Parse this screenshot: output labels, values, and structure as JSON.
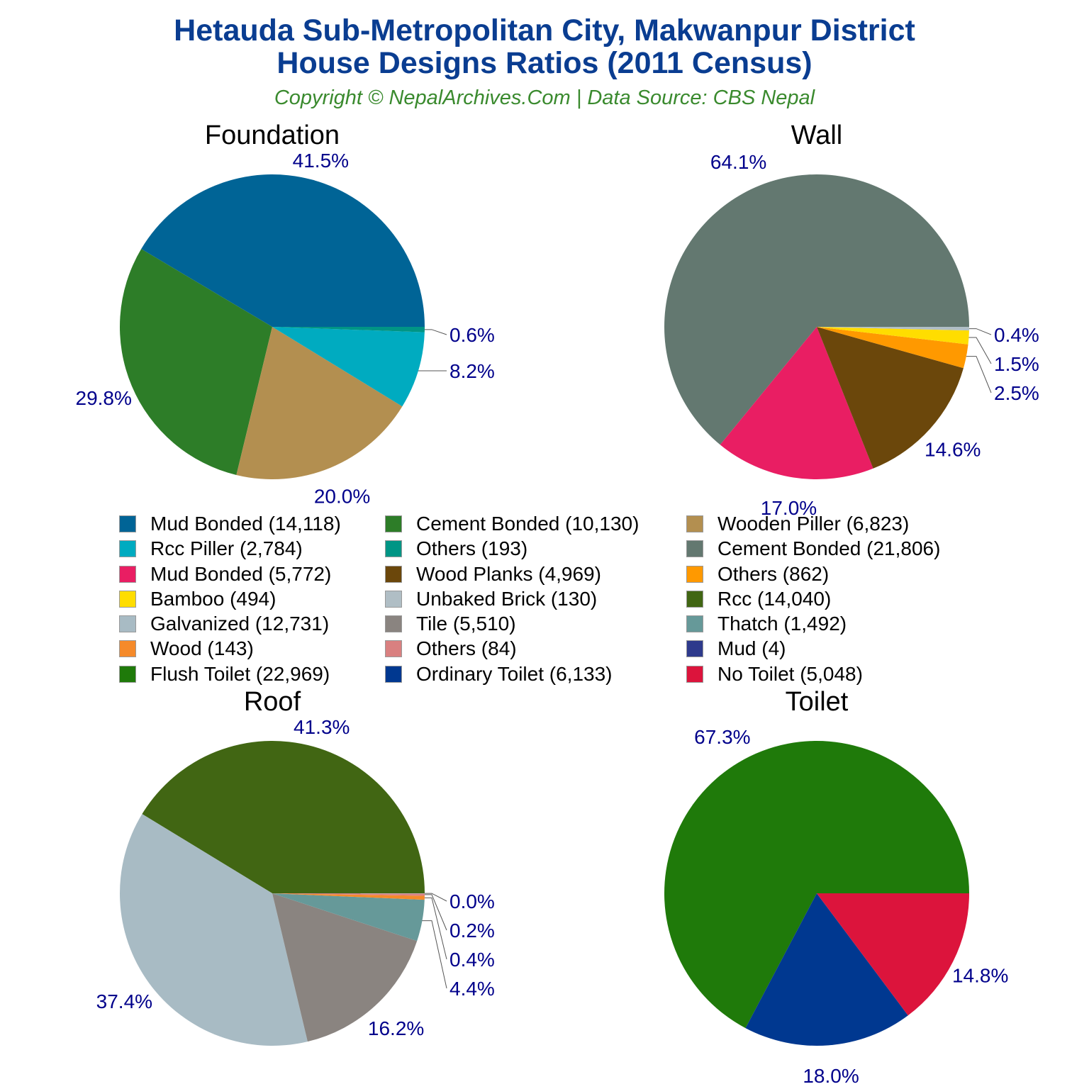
{
  "title_line1": "Hetauda Sub-Metropolitan City, Makwanpur District",
  "title_line2": "House Designs Ratios (2011 Census)",
  "copyright": "Copyright © NepalArchives.Com | Data Source: CBS Nepal",
  "chart_data": [
    {
      "type": "pie",
      "title": "Foundation",
      "slices": [
        {
          "label": "Mud Bonded",
          "value": 14118,
          "pct": "41.5%",
          "color": "#006496"
        },
        {
          "label": "Cement Bonded",
          "value": 10130,
          "pct": "29.8%",
          "color": "#2d7d28"
        },
        {
          "label": "Wooden Piller",
          "value": 6823,
          "pct": "20.0%",
          "color": "#b38f50"
        },
        {
          "label": "Rcc Piller",
          "value": 2784,
          "pct": "8.2%",
          "color": "#00abc0"
        },
        {
          "label": "Others",
          "value": 193,
          "pct": "0.6%",
          "color": "#009585"
        }
      ]
    },
    {
      "type": "pie",
      "title": "Wall",
      "slices": [
        {
          "label": "Cement Bonded",
          "value": 21806,
          "pct": "64.1%",
          "color": "#637870"
        },
        {
          "label": "Mud Bonded",
          "value": 5772,
          "pct": "17.0%",
          "color": "#e91e63"
        },
        {
          "label": "Wood Planks",
          "value": 4969,
          "pct": "14.6%",
          "color": "#6b470b"
        },
        {
          "label": "Others",
          "value": 862,
          "pct": "2.5%",
          "color": "#ff9900"
        },
        {
          "label": "Bamboo",
          "value": 494,
          "pct": "1.5%",
          "color": "#ffdd00"
        },
        {
          "label": "Unbaked Brick",
          "value": 130,
          "pct": "0.4%",
          "color": "#b0bec5"
        }
      ]
    },
    {
      "type": "pie",
      "title": "Roof",
      "slices": [
        {
          "label": "Rcc",
          "value": 14040,
          "pct": "41.3%",
          "color": "#416613"
        },
        {
          "label": "Galvanized",
          "value": 12731,
          "pct": "37.4%",
          "color": "#a8bbc4"
        },
        {
          "label": "Tile",
          "value": 5510,
          "pct": "16.2%",
          "color": "#8a8480"
        },
        {
          "label": "Thatch",
          "value": 1492,
          "pct": "4.4%",
          "color": "#669999"
        },
        {
          "label": "Wood",
          "value": 143,
          "pct": "0.4%",
          "color": "#f58a2a"
        },
        {
          "label": "Others",
          "value": 84,
          "pct": "0.2%",
          "color": "#d98080"
        },
        {
          "label": "Mud",
          "value": 4,
          "pct": "0.0%",
          "color": "#2e3a8c"
        }
      ]
    },
    {
      "type": "pie",
      "title": "Toilet",
      "slices": [
        {
          "label": "Flush Toilet",
          "value": 22969,
          "pct": "67.3%",
          "color": "#1f7a0a"
        },
        {
          "label": "Ordinary Toilet",
          "value": 6133,
          "pct": "18.0%",
          "color": "#003890"
        },
        {
          "label": "No Toilet",
          "value": 5048,
          "pct": "14.8%",
          "color": "#dc143c"
        }
      ]
    }
  ],
  "legend": [
    "Mud Bonded (14,118)",
    "Cement Bonded (10,130)",
    "Wooden Piller (6,823)",
    "Rcc Piller (2,784)",
    "Others (193)",
    "Cement Bonded (21,806)",
    "Mud Bonded (5,772)",
    "Wood Planks (4,969)",
    "Others (862)",
    "Bamboo (494)",
    "Unbaked Brick (130)",
    "Rcc (14,040)",
    "Galvanized (12,731)",
    "Tile (5,510)",
    "Thatch (1,492)",
    "Wood (143)",
    "Others (84)",
    "Mud (4)",
    "Flush Toilet (22,969)",
    "Ordinary Toilet (6,133)",
    "No Toilet (5,048)"
  ],
  "legend_colors": [
    "#006496",
    "#2d7d28",
    "#b38f50",
    "#00abc0",
    "#009585",
    "#637870",
    "#e91e63",
    "#6b470b",
    "#ff9900",
    "#ffdd00",
    "#b0bec5",
    "#416613",
    "#a8bbc4",
    "#8a8480",
    "#669999",
    "#f58a2a",
    "#d98080",
    "#2e3a8c",
    "#1f7a0a",
    "#003890",
    "#dc143c"
  ]
}
